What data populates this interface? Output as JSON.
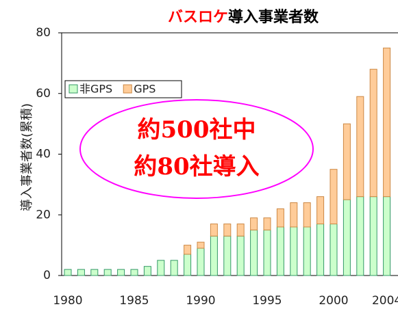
{
  "chart_data": {
    "type": "stacked_bar",
    "title_parts": [
      "バスロケ",
      "導入事業者数"
    ],
    "ylabel": "導入事業者数(累積)",
    "annotation": [
      "約500社中",
      "約80社導入"
    ],
    "categories": [
      "1980",
      null,
      null,
      null,
      null,
      "1985",
      null,
      null,
      null,
      null,
      "1990",
      null,
      null,
      null,
      null,
      "1995",
      null,
      null,
      null,
      null,
      "2000",
      null,
      null,
      null,
      "2004"
    ],
    "series": [
      {
        "name": "非GPS",
        "color": "#ccffcc",
        "values": [
          2,
          2,
          2,
          2,
          2,
          2,
          3,
          5,
          5,
          7,
          9,
          13,
          13,
          13,
          15,
          15,
          16,
          16,
          16,
          17,
          17,
          25,
          26,
          26,
          26
        ]
      },
      {
        "name": "GPS",
        "color": "#ffcc99",
        "values": [
          0,
          0,
          0,
          0,
          0,
          0,
          0,
          0,
          0,
          3,
          2,
          4,
          4,
          4,
          4,
          4,
          6,
          8,
          8,
          9,
          18,
          25,
          33,
          42,
          49
        ]
      }
    ],
    "ylim": [
      0,
      80
    ],
    "yticks": [
      0,
      20,
      40,
      60,
      80
    ],
    "legend": "upper left"
  }
}
